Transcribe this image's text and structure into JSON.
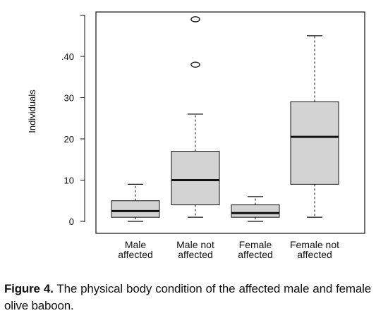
{
  "chart_data": {
    "type": "boxplot",
    "xlabel": "",
    "ylabel": "Individuals",
    "ylim": [
      0,
      50
    ],
    "yticks": [
      0,
      10,
      20,
      30,
      ".40"
    ],
    "categories": [
      "Male\naffected",
      "Male not\naffected",
      "Female\naffected",
      "Female not\naffected"
    ],
    "boxes": [
      {
        "category": "Male\naffected",
        "whisker_low": 0,
        "q1": 1,
        "median": 2.5,
        "q3": 5,
        "whisker_high": 9,
        "outliers": []
      },
      {
        "category": "Male not\naffected",
        "whisker_low": 1,
        "q1": 4,
        "median": 10,
        "q3": 17,
        "whisker_high": 26,
        "outliers": [
          38,
          49
        ]
      },
      {
        "category": "Female\naffected",
        "whisker_low": 0,
        "q1": 1,
        "median": 2,
        "q3": 4,
        "whisker_high": 6,
        "outliers": []
      },
      {
        "category": "Female not\naffected",
        "whisker_low": 1,
        "q1": 9,
        "median": 20.5,
        "q3": 29,
        "whisker_high": 45,
        "outliers": []
      }
    ],
    "box_fill": "#d3d3d3"
  },
  "caption": {
    "label": "Figure 4.",
    "text": " The physical body condition of the affected male and female olive baboon."
  }
}
